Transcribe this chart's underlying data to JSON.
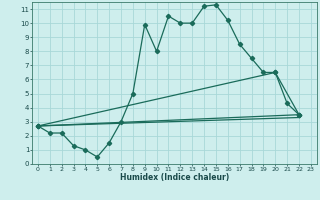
{
  "title": "",
  "xlabel": "Humidex (Indice chaleur)",
  "bg_color": "#ceeeed",
  "grid_color": "#a8d8d8",
  "line_color": "#1a6b5a",
  "xlim": [
    -0.5,
    23.5
  ],
  "ylim": [
    0,
    11.5
  ],
  "xticks": [
    0,
    1,
    2,
    3,
    4,
    5,
    6,
    7,
    8,
    9,
    10,
    11,
    12,
    13,
    14,
    15,
    16,
    17,
    18,
    19,
    20,
    21,
    22,
    23
  ],
  "yticks": [
    0,
    1,
    2,
    3,
    4,
    5,
    6,
    7,
    8,
    9,
    10,
    11
  ],
  "line1_x": [
    0,
    1,
    2,
    3,
    4,
    5,
    6,
    7,
    8,
    9,
    10,
    11,
    12,
    13,
    14,
    15,
    16,
    17,
    18,
    19,
    20,
    21,
    22
  ],
  "line1_y": [
    2.7,
    2.2,
    2.2,
    1.3,
    1.0,
    0.5,
    1.5,
    3.0,
    5.0,
    9.9,
    8.0,
    10.5,
    10.0,
    10.0,
    11.2,
    11.3,
    10.2,
    8.5,
    7.5,
    6.5,
    6.5,
    4.3,
    3.5
  ],
  "line2_x": [
    0,
    22
  ],
  "line2_y": [
    2.7,
    3.5
  ],
  "line3_x": [
    0,
    20,
    22
  ],
  "line3_y": [
    2.7,
    6.5,
    3.5
  ],
  "line4_x": [
    0,
    22
  ],
  "line4_y": [
    2.7,
    3.5
  ]
}
